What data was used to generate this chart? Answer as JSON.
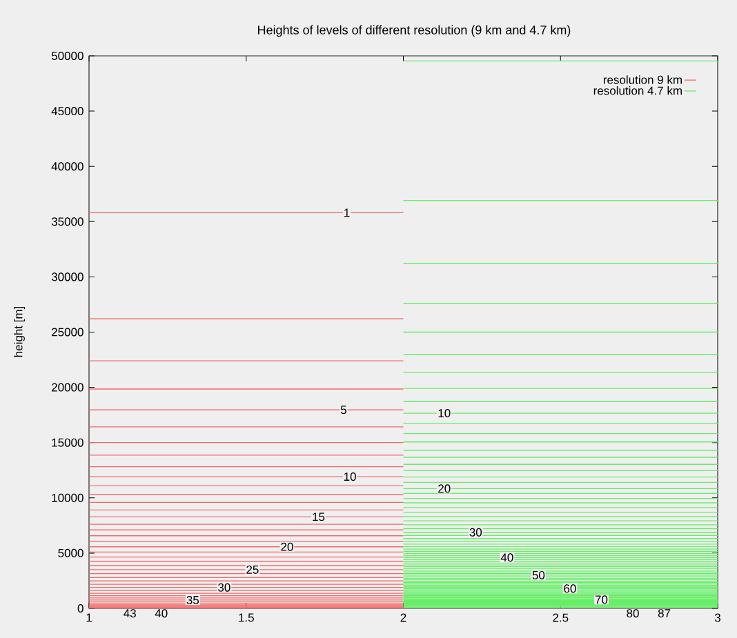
{
  "chart_data": {
    "type": "line",
    "title": "Heights of levels of different resolution (9 km and 4.7 km)",
    "ylabel": "height [m]",
    "xlim": [
      1,
      3
    ],
    "xticks": [
      1,
      1.5,
      2,
      2.5,
      3
    ],
    "ylim": [
      0,
      50000
    ],
    "yticks": [
      0,
      5000,
      10000,
      15000,
      20000,
      25000,
      30000,
      35000,
      40000,
      45000,
      50000
    ],
    "legend": "top right",
    "marker": "none",
    "line_style": "solid",
    "series": [
      {
        "name": "resolution 9 km",
        "color": "#f46a6a",
        "x": [
          1,
          2
        ],
        "values": [
          35800,
          35800
        ]
      },
      {
        "color": "#f46a6a",
        "x": [
          1,
          2
        ],
        "values": [
          26200,
          26200
        ]
      },
      {
        "color": "#f46a6a",
        "x": [
          1,
          2
        ],
        "values": [
          22400,
          22400
        ]
      },
      {
        "color": "#f46a6a",
        "x": [
          1,
          2
        ],
        "values": [
          19850,
          19850
        ]
      },
      {
        "color": "#f46a6a",
        "x": [
          1,
          2
        ],
        "values": [
          17960,
          17960
        ]
      },
      {
        "color": "#f46a6a",
        "x": [
          1,
          2
        ],
        "values": [
          16420,
          16420
        ]
      },
      {
        "color": "#f46a6a",
        "x": [
          1,
          2
        ],
        "values": [
          15000,
          15000
        ]
      },
      {
        "color": "#f46a6a",
        "x": [
          1,
          2
        ],
        "values": [
          13860,
          13860
        ]
      },
      {
        "color": "#f46a6a",
        "x": [
          1,
          2
        ],
        "values": [
          12820,
          12820
        ]
      },
      {
        "color": "#f46a6a",
        "x": [
          1,
          2
        ],
        "values": [
          11920,
          11920
        ]
      },
      {
        "color": "#f46a6a",
        "x": [
          1,
          2
        ],
        "values": [
          11090,
          11090
        ]
      },
      {
        "color": "#f46a6a",
        "x": [
          1,
          2
        ],
        "values": [
          10300,
          10300
        ]
      },
      {
        "color": "#f46a6a",
        "x": [
          1,
          2
        ],
        "values": [
          9590,
          9590
        ]
      },
      {
        "color": "#f46a6a",
        "x": [
          1,
          2
        ],
        "values": [
          8900,
          8900
        ]
      },
      {
        "color": "#f46a6a",
        "x": [
          1,
          2
        ],
        "values": [
          8280,
          8280
        ]
      },
      {
        "color": "#f46a6a",
        "x": [
          1,
          2
        ],
        "values": [
          7610,
          7610
        ]
      },
      {
        "color": "#f46a6a",
        "x": [
          1,
          2
        ],
        "values": [
          7100,
          7100
        ]
      },
      {
        "color": "#f46a6a",
        "x": [
          1,
          2
        ],
        "values": [
          6570,
          6570
        ]
      },
      {
        "color": "#f46a6a",
        "x": [
          1,
          2
        ],
        "values": [
          6050,
          6050
        ]
      },
      {
        "color": "#f46a6a",
        "x": [
          1,
          2
        ],
        "values": [
          5570,
          5570
        ]
      },
      {
        "color": "#f46a6a",
        "x": [
          1,
          2
        ],
        "values": [
          5090,
          5090
        ]
      },
      {
        "color": "#f46a6a",
        "x": [
          1,
          2
        ],
        "values": [
          4640,
          4640
        ]
      },
      {
        "color": "#f46a6a",
        "x": [
          1,
          2
        ],
        "values": [
          4260,
          4260
        ]
      },
      {
        "color": "#f46a6a",
        "x": [
          1,
          2
        ],
        "values": [
          3870,
          3870
        ]
      },
      {
        "color": "#f46a6a",
        "x": [
          1,
          2
        ],
        "values": [
          3500,
          3500
        ]
      },
      {
        "color": "#f46a6a",
        "x": [
          1,
          2
        ],
        "values": [
          3140,
          3140
        ]
      },
      {
        "color": "#f46a6a",
        "x": [
          1,
          2
        ],
        "values": [
          2790,
          2790
        ]
      },
      {
        "color": "#f46a6a",
        "x": [
          1,
          2
        ],
        "values": [
          2480,
          2480
        ]
      },
      {
        "color": "#f46a6a",
        "x": [
          1,
          2
        ],
        "values": [
          2170,
          2170
        ]
      },
      {
        "color": "#f46a6a",
        "x": [
          1,
          2
        ],
        "values": [
          1890,
          1890
        ]
      },
      {
        "color": "#f46a6a",
        "x": [
          1,
          2
        ],
        "values": [
          1620,
          1620
        ]
      },
      {
        "color": "#f46a6a",
        "x": [
          1,
          2
        ],
        "values": [
          1370,
          1370
        ]
      },
      {
        "color": "#f46a6a",
        "x": [
          1,
          2
        ],
        "values": [
          1140,
          1140
        ]
      },
      {
        "color": "#f46a6a",
        "x": [
          1,
          2
        ],
        "values": [
          940,
          940
        ]
      },
      {
        "color": "#f46a6a",
        "x": [
          1,
          2
        ],
        "values": [
          750,
          750
        ]
      },
      {
        "color": "#f46a6a",
        "x": [
          1,
          2
        ],
        "values": [
          580,
          580
        ]
      },
      {
        "color": "#f46a6a",
        "x": [
          1,
          2
        ],
        "values": [
          430,
          430
        ]
      },
      {
        "color": "#f46a6a",
        "x": [
          1,
          2
        ],
        "values": [
          310,
          310
        ]
      },
      {
        "color": "#f46a6a",
        "x": [
          1,
          2
        ],
        "values": [
          210,
          210
        ]
      },
      {
        "color": "#f46a6a",
        "x": [
          1,
          2
        ],
        "values": [
          130,
          130
        ]
      },
      {
        "color": "#f46a6a",
        "x": [
          1,
          2
        ],
        "values": [
          70,
          70
        ]
      },
      {
        "color": "#f46a6a",
        "x": [
          1,
          2
        ],
        "values": [
          30,
          30
        ]
      },
      {
        "name": "resolution 4.7 km",
        "color": "#66ee66",
        "x": [
          2,
          3
        ],
        "values": [
          49540,
          49540
        ]
      },
      {
        "color": "#66ee66",
        "x": [
          2,
          3
        ],
        "values": [
          36910,
          36910
        ]
      },
      {
        "color": "#66ee66",
        "x": [
          2,
          3
        ],
        "values": [
          31210,
          31210
        ]
      },
      {
        "color": "#66ee66",
        "x": [
          2,
          3
        ],
        "values": [
          27590,
          27590
        ]
      },
      {
        "color": "#66ee66",
        "x": [
          2,
          3
        ],
        "values": [
          25000,
          25000
        ]
      },
      {
        "color": "#66ee66",
        "x": [
          2,
          3
        ],
        "values": [
          22970,
          22970
        ]
      },
      {
        "color": "#66ee66",
        "x": [
          2,
          3
        ],
        "values": [
          21350,
          21350
        ]
      },
      {
        "color": "#66ee66",
        "x": [
          2,
          3
        ],
        "values": [
          19910,
          19910
        ]
      },
      {
        "color": "#66ee66",
        "x": [
          2,
          3
        ],
        "values": [
          18710,
          18710
        ]
      },
      {
        "color": "#66ee66",
        "x": [
          2,
          3
        ],
        "values": [
          17660,
          17660
        ]
      },
      {
        "color": "#66ee66",
        "x": [
          2,
          3
        ],
        "values": [
          16730,
          16730
        ]
      },
      {
        "color": "#66ee66",
        "x": [
          2,
          3
        ],
        "values": [
          15810,
          15810
        ]
      },
      {
        "color": "#66ee66",
        "x": [
          2,
          3
        ],
        "values": [
          15060,
          15060
        ]
      },
      {
        "color": "#66ee66",
        "x": [
          2,
          3
        ],
        "values": [
          14310,
          14310
        ]
      },
      {
        "color": "#66ee66",
        "x": [
          2,
          3
        ],
        "values": [
          13670,
          13670
        ]
      },
      {
        "color": "#66ee66",
        "x": [
          2,
          3
        ],
        "values": [
          13030,
          13030
        ]
      },
      {
        "color": "#66ee66",
        "x": [
          2,
          3
        ],
        "values": [
          12460,
          12460
        ]
      },
      {
        "color": "#66ee66",
        "x": [
          2,
          3
        ],
        "values": [
          11880,
          11880
        ]
      },
      {
        "color": "#66ee66",
        "x": [
          2,
          3
        ],
        "values": [
          11400,
          11400
        ]
      },
      {
        "color": "#66ee66",
        "x": [
          2,
          3
        ],
        "values": [
          10840,
          10840
        ]
      },
      {
        "color": "#66ee66",
        "x": [
          2,
          3
        ],
        "values": [
          10400,
          10400
        ]
      },
      {
        "color": "#66ee66",
        "x": [
          2,
          3
        ],
        "values": [
          9950,
          9950
        ]
      },
      {
        "color": "#66ee66",
        "x": [
          2,
          3
        ],
        "values": [
          9550,
          9550
        ]
      },
      {
        "color": "#66ee66",
        "x": [
          2,
          3
        ],
        "values": [
          9120,
          9120
        ]
      },
      {
        "color": "#66ee66",
        "x": [
          2,
          3
        ],
        "values": [
          8700,
          8700
        ]
      },
      {
        "color": "#66ee66",
        "x": [
          2,
          3
        ],
        "values": [
          8300,
          8300
        ]
      },
      {
        "color": "#66ee66",
        "x": [
          2,
          3
        ],
        "values": [
          7920,
          7920
        ]
      },
      {
        "color": "#66ee66",
        "x": [
          2,
          3
        ],
        "values": [
          7560,
          7560
        ]
      },
      {
        "color": "#66ee66",
        "x": [
          2,
          3
        ],
        "values": [
          7210,
          7210
        ]
      },
      {
        "color": "#66ee66",
        "x": [
          2,
          3
        ],
        "values": [
          6880,
          6880
        ]
      },
      {
        "color": "#66ee66",
        "x": [
          2,
          3
        ],
        "values": [
          6590,
          6590
        ]
      },
      {
        "color": "#66ee66",
        "x": [
          2,
          3
        ],
        "values": [
          6320,
          6320
        ]
      },
      {
        "color": "#66ee66",
        "x": [
          2,
          3
        ],
        "values": [
          6060,
          6060
        ]
      },
      {
        "color": "#66ee66",
        "x": [
          2,
          3
        ],
        "values": [
          5810,
          5810
        ]
      },
      {
        "color": "#66ee66",
        "x": [
          2,
          3
        ],
        "values": [
          5580,
          5580
        ]
      },
      {
        "color": "#66ee66",
        "x": [
          2,
          3
        ],
        "values": [
          5360,
          5360
        ]
      },
      {
        "color": "#66ee66",
        "x": [
          2,
          3
        ],
        "values": [
          5150,
          5150
        ]
      },
      {
        "color": "#66ee66",
        "x": [
          2,
          3
        ],
        "values": [
          4960,
          4960
        ]
      },
      {
        "color": "#66ee66",
        "x": [
          2,
          3
        ],
        "values": [
          4770,
          4770
        ]
      },
      {
        "color": "#66ee66",
        "x": [
          2,
          3
        ],
        "values": [
          4600,
          4600
        ]
      },
      {
        "color": "#66ee66",
        "x": [
          2,
          3
        ],
        "values": [
          4430,
          4430
        ]
      },
      {
        "color": "#66ee66",
        "x": [
          2,
          3
        ],
        "values": [
          4260,
          4260
        ]
      },
      {
        "color": "#66ee66",
        "x": [
          2,
          3
        ],
        "values": [
          4100,
          4100
        ]
      },
      {
        "color": "#66ee66",
        "x": [
          2,
          3
        ],
        "values": [
          3930,
          3930
        ]
      },
      {
        "color": "#66ee66",
        "x": [
          2,
          3
        ],
        "values": [
          3770,
          3770
        ]
      },
      {
        "color": "#66ee66",
        "x": [
          2,
          3
        ],
        "values": [
          3610,
          3610
        ]
      },
      {
        "color": "#66ee66",
        "x": [
          2,
          3
        ],
        "values": [
          3460,
          3460
        ]
      },
      {
        "color": "#66ee66",
        "x": [
          2,
          3
        ],
        "values": [
          3300,
          3300
        ]
      },
      {
        "color": "#66ee66",
        "x": [
          2,
          3
        ],
        "values": [
          3150,
          3150
        ]
      },
      {
        "color": "#66ee66",
        "x": [
          2,
          3
        ],
        "values": [
          3000,
          3000
        ]
      },
      {
        "color": "#66ee66",
        "x": [
          2,
          3
        ],
        "values": [
          2860,
          2860
        ]
      },
      {
        "color": "#66ee66",
        "x": [
          2,
          3
        ],
        "values": [
          2720,
          2720
        ]
      },
      {
        "color": "#66ee66",
        "x": [
          2,
          3
        ],
        "values": [
          2580,
          2580
        ]
      },
      {
        "color": "#66ee66",
        "x": [
          2,
          3
        ],
        "values": [
          2450,
          2450
        ]
      },
      {
        "color": "#66ee66",
        "x": [
          2,
          3
        ],
        "values": [
          2330,
          2330
        ]
      },
      {
        "color": "#66ee66",
        "x": [
          2,
          3
        ],
        "values": [
          2210,
          2210
        ]
      },
      {
        "color": "#66ee66",
        "x": [
          2,
          3
        ],
        "values": [
          2090,
          2090
        ]
      },
      {
        "color": "#66ee66",
        "x": [
          2,
          3
        ],
        "values": [
          1990,
          1990
        ]
      },
      {
        "color": "#66ee66",
        "x": [
          2,
          3
        ],
        "values": [
          1890,
          1890
        ]
      },
      {
        "color": "#66ee66",
        "x": [
          2,
          3
        ],
        "values": [
          1790,
          1790
        ]
      },
      {
        "color": "#66ee66",
        "x": [
          2,
          3
        ],
        "values": [
          1680,
          1680
        ]
      },
      {
        "color": "#66ee66",
        "x": [
          2,
          3
        ],
        "values": [
          1570,
          1570
        ]
      },
      {
        "color": "#66ee66",
        "x": [
          2,
          3
        ],
        "values": [
          1470,
          1470
        ]
      },
      {
        "color": "#66ee66",
        "x": [
          2,
          3
        ],
        "values": [
          1370,
          1370
        ]
      },
      {
        "color": "#66ee66",
        "x": [
          2,
          3
        ],
        "values": [
          1270,
          1270
        ]
      },
      {
        "color": "#66ee66",
        "x": [
          2,
          3
        ],
        "values": [
          1170,
          1170
        ]
      },
      {
        "color": "#66ee66",
        "x": [
          2,
          3
        ],
        "values": [
          1080,
          1080
        ]
      },
      {
        "color": "#66ee66",
        "x": [
          2,
          3
        ],
        "values": [
          980,
          980
        ]
      },
      {
        "color": "#66ee66",
        "x": [
          2,
          3
        ],
        "values": [
          880,
          880
        ]
      },
      {
        "color": "#66ee66",
        "x": [
          2,
          3
        ],
        "values": [
          790,
          790
        ]
      },
      {
        "color": "#66ee66",
        "x": [
          2,
          3
        ],
        "values": [
          720,
          720
        ]
      },
      {
        "color": "#66ee66",
        "x": [
          2,
          3
        ],
        "values": [
          650,
          650
        ]
      },
      {
        "color": "#66ee66",
        "x": [
          2,
          3
        ],
        "values": [
          580,
          580
        ]
      },
      {
        "color": "#66ee66",
        "x": [
          2,
          3
        ],
        "values": [
          520,
          520
        ]
      },
      {
        "color": "#66ee66",
        "x": [
          2,
          3
        ],
        "values": [
          460,
          460
        ]
      },
      {
        "color": "#66ee66",
        "x": [
          2,
          3
        ],
        "values": [
          400,
          400
        ]
      },
      {
        "color": "#66ee66",
        "x": [
          2,
          3
        ],
        "values": [
          340,
          340
        ]
      },
      {
        "color": "#66ee66",
        "x": [
          2,
          3
        ],
        "values": [
          270,
          270
        ]
      },
      {
        "color": "#66ee66",
        "x": [
          2,
          3
        ],
        "values": [
          200,
          200
        ]
      },
      {
        "color": "#66ee66",
        "x": [
          2,
          3
        ],
        "values": [
          130,
          130
        ]
      },
      {
        "color": "#66ee66",
        "x": [
          2,
          3
        ],
        "values": [
          70,
          70
        ]
      }
    ],
    "annotations": [
      {
        "text": "1",
        "x": 1.82,
        "y": 35800
      },
      {
        "text": "5",
        "x": 1.81,
        "y": 17960
      },
      {
        "text": "10",
        "x": 1.83,
        "y": 11920
      },
      {
        "text": "15",
        "x": 1.73,
        "y": 8280
      },
      {
        "text": "20",
        "x": 1.63,
        "y": 5570
      },
      {
        "text": "25",
        "x": 1.52,
        "y": 3500
      },
      {
        "text": "30",
        "x": 1.43,
        "y": 1890
      },
      {
        "text": "35",
        "x": 1.33,
        "y": 750
      },
      {
        "text": "40",
        "x": 1.23,
        "y": 130
      },
      {
        "text": "43",
        "x": 1.13,
        "y": 0
      },
      {
        "text": "10",
        "x": 2.13,
        "y": 17660
      },
      {
        "text": "20",
        "x": 2.13,
        "y": 10840
      },
      {
        "text": "30",
        "x": 2.23,
        "y": 6880
      },
      {
        "text": "40",
        "x": 2.33,
        "y": 4600
      },
      {
        "text": "50",
        "x": 2.43,
        "y": 3000
      },
      {
        "text": "60",
        "x": 2.53,
        "y": 1790
      },
      {
        "text": "70",
        "x": 2.63,
        "y": 790
      },
      {
        "text": "80",
        "x": 2.73,
        "y": 240
      },
      {
        "text": "87",
        "x": 2.83,
        "y": 0
      }
    ]
  }
}
